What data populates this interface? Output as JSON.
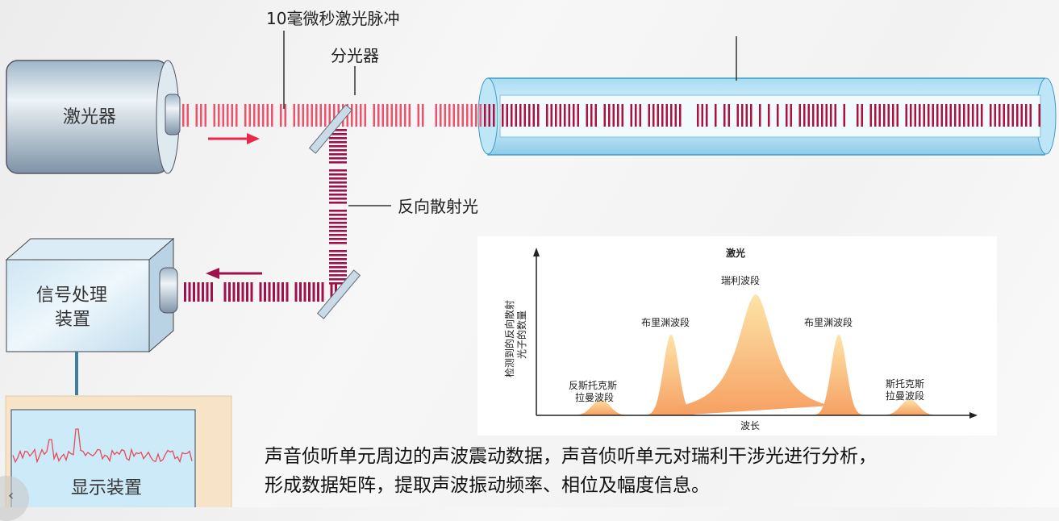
{
  "labels": {
    "pulse": "10毫微秒激光脉冲",
    "splitter": "分光器",
    "laser": "激光器",
    "backscatter": "反向散射光",
    "processor_line1": "信号处理",
    "processor_line2": "装置",
    "display": "显示装置"
  },
  "spectrum": {
    "title": "激光",
    "ylabel_line1": "检测到的反向散射",
    "ylabel_line2": "光子的数量",
    "xlabel": "波长",
    "peaks": [
      {
        "label1": "反斯托克斯",
        "label2": "拉曼波段",
        "relative_height": 0.1
      },
      {
        "label1": "布里渊波段",
        "label2": "",
        "relative_height": 0.5
      },
      {
        "label1": "瑞利波段",
        "label2": "",
        "relative_height": 0.75
      },
      {
        "label1": "布里渊波段",
        "label2": "",
        "relative_height": 0.5
      },
      {
        "label1": "斯托克斯",
        "label2": "拉曼波段",
        "relative_height": 0.1
      }
    ]
  },
  "caption": {
    "line1": "声音侦听单元周边的声波震动数据，声音侦听单元对瑞利干涉光进行分析，",
    "line2": "形成数据矩阵，提取声波振动频率、相位及幅度信息。"
  },
  "colors": {
    "pulse": "#e8294a",
    "return": "#a0104a",
    "peak_top": "#fde4a8",
    "peak_bottom": "#f6a062"
  }
}
